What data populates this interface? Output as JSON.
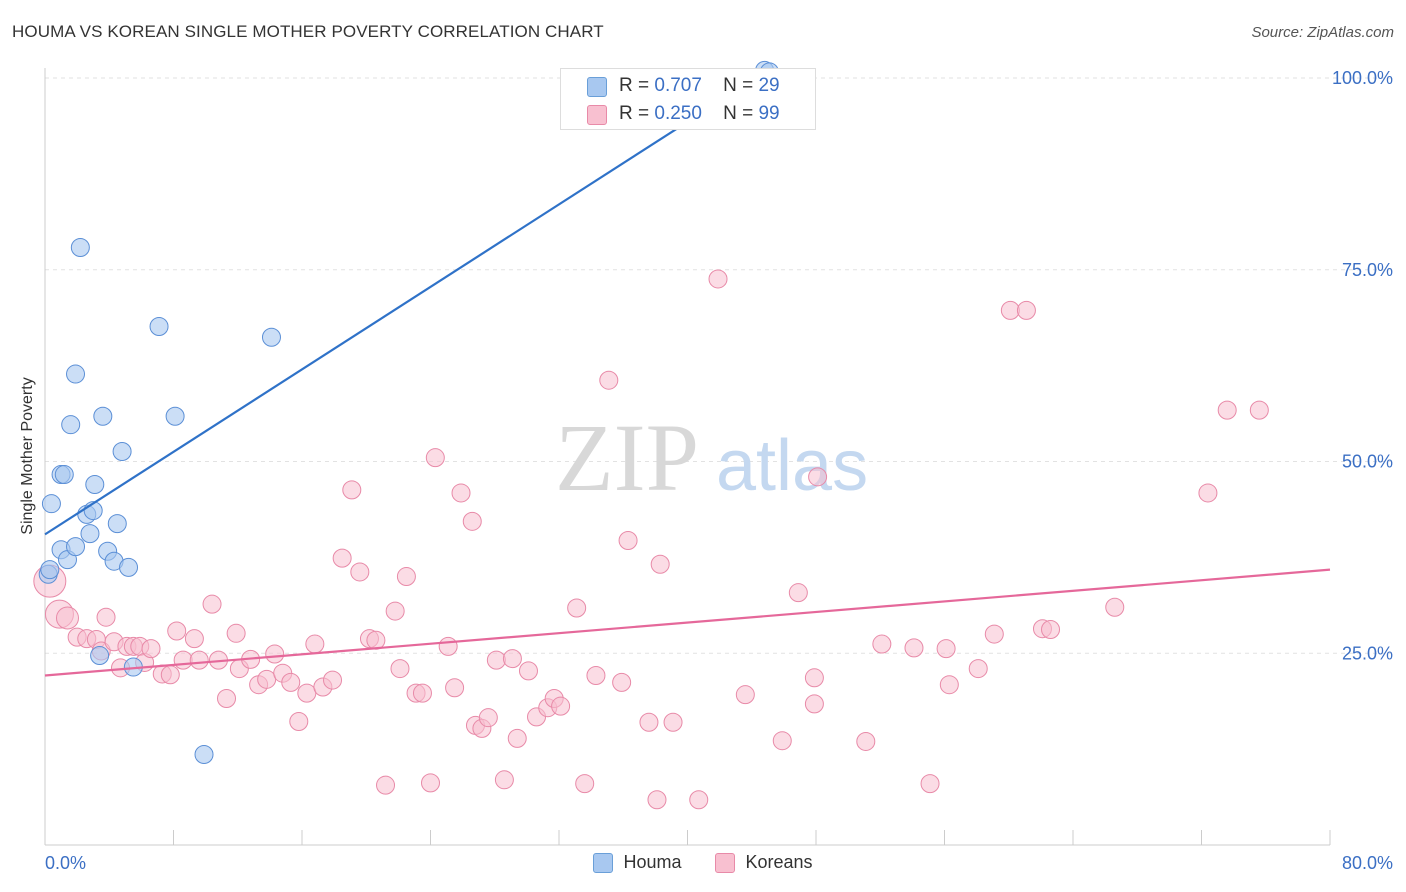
{
  "title": "HOUMA VS KOREAN SINGLE MOTHER POVERTY CORRELATION CHART",
  "source": "Source: ZipAtlas.com",
  "watermark": {
    "zip": "ZIP",
    "atlas": "atlas"
  },
  "stats": [
    {
      "r_label": "R =",
      "r_value": "0.707",
      "n_label": "N =",
      "n_value": "29",
      "color": "#a8c8f0",
      "border": "#6a9fd8"
    },
    {
      "r_label": "R =",
      "r_value": "0.250",
      "n_label": "N =",
      "n_value": "99",
      "color": "#f8c0d0",
      "border": "#e88aa8"
    }
  ],
  "legend": [
    {
      "label": "Houma",
      "color": "#a8c8f0",
      "border": "#6a9fd8"
    },
    {
      "label": "Koreans",
      "color": "#f8c0d0",
      "border": "#e88aa8"
    }
  ],
  "chart_data": {
    "type": "scatter",
    "title": "HOUMA VS KOREAN SINGLE MOTHER POVERTY CORRELATION CHART",
    "xlabel": "",
    "ylabel": "Single Mother Poverty",
    "xlim": [
      0,
      80
    ],
    "ylim": [
      0,
      100
    ],
    "x_tick_labels": [
      "0.0%",
      "80.0%"
    ],
    "y_tick_labels": [
      "100.0%",
      "75.0%",
      "50.0%",
      "25.0%"
    ],
    "y_ticks": [
      100,
      75,
      50,
      25
    ],
    "grid": true,
    "colors": {
      "houma": "#5b8fd6",
      "houma_fill": "#a8c8f0",
      "houma_line": "#2f72c8",
      "koreans": "#e88aa8",
      "koreans_fill": "#f8c0d0",
      "koreans_line": "#e5689a",
      "axis_text": "#3b6fc4"
    },
    "series": [
      {
        "name": "Houma",
        "trend": {
          "x": [
            0,
            45
          ],
          "y": [
            40.5,
            101
          ]
        },
        "points": [
          [
            0.2,
            35.3
          ],
          [
            0.3,
            35.9
          ],
          [
            0.4,
            44.5
          ],
          [
            1.0,
            48.3
          ],
          [
            1.0,
            38.5
          ],
          [
            1.2,
            48.3
          ],
          [
            1.4,
            37.2
          ],
          [
            1.6,
            54.8
          ],
          [
            1.9,
            61.4
          ],
          [
            1.9,
            38.9
          ],
          [
            2.2,
            77.9
          ],
          [
            2.6,
            43.1
          ],
          [
            2.8,
            40.6
          ],
          [
            3.0,
            43.6
          ],
          [
            3.1,
            47.0
          ],
          [
            3.4,
            24.7
          ],
          [
            3.6,
            55.9
          ],
          [
            3.9,
            38.3
          ],
          [
            4.3,
            37.0
          ],
          [
            4.5,
            41.9
          ],
          [
            4.8,
            51.3
          ],
          [
            5.2,
            36.2
          ],
          [
            5.5,
            23.2
          ],
          [
            7.1,
            67.6
          ],
          [
            8.1,
            55.9
          ],
          [
            9.9,
            11.8
          ],
          [
            14.1,
            66.2
          ],
          [
            44.8,
            101.0
          ],
          [
            45.1,
            100.8
          ]
        ]
      },
      {
        "name": "Koreans",
        "trend": {
          "x": [
            0,
            80
          ],
          "y": [
            22.1,
            35.9
          ]
        },
        "points": [
          [
            0.3,
            34.4
          ],
          [
            0.9,
            30.1
          ],
          [
            1.4,
            29.6
          ],
          [
            2.0,
            27.1
          ],
          [
            2.6,
            26.9
          ],
          [
            3.2,
            26.8
          ],
          [
            3.5,
            25.3
          ],
          [
            3.8,
            29.7
          ],
          [
            4.3,
            26.5
          ],
          [
            4.7,
            23.1
          ],
          [
            5.1,
            25.9
          ],
          [
            5.5,
            25.9
          ],
          [
            5.9,
            25.9
          ],
          [
            6.2,
            23.8
          ],
          [
            6.6,
            25.6
          ],
          [
            7.3,
            22.3
          ],
          [
            7.8,
            22.2
          ],
          [
            8.2,
            27.9
          ],
          [
            8.6,
            24.1
          ],
          [
            9.3,
            26.9
          ],
          [
            9.6,
            24.1
          ],
          [
            10.4,
            31.4
          ],
          [
            10.8,
            24.1
          ],
          [
            11.3,
            19.1
          ],
          [
            11.9,
            27.6
          ],
          [
            12.1,
            23.0
          ],
          [
            12.8,
            24.2
          ],
          [
            13.3,
            20.9
          ],
          [
            13.8,
            21.6
          ],
          [
            14.3,
            24.9
          ],
          [
            14.8,
            22.4
          ],
          [
            15.3,
            21.2
          ],
          [
            15.8,
            16.1
          ],
          [
            16.3,
            19.8
          ],
          [
            16.8,
            26.2
          ],
          [
            17.3,
            20.6
          ],
          [
            17.9,
            21.5
          ],
          [
            18.5,
            37.4
          ],
          [
            19.1,
            46.3
          ],
          [
            19.6,
            35.6
          ],
          [
            20.2,
            26.9
          ],
          [
            20.6,
            26.7
          ],
          [
            21.2,
            7.8
          ],
          [
            21.8,
            30.5
          ],
          [
            22.1,
            23.0
          ],
          [
            22.5,
            35.0
          ],
          [
            23.1,
            19.8
          ],
          [
            23.5,
            19.8
          ],
          [
            24.0,
            8.1
          ],
          [
            24.3,
            50.5
          ],
          [
            25.1,
            25.9
          ],
          [
            25.5,
            20.5
          ],
          [
            25.9,
            45.9
          ],
          [
            26.6,
            42.2
          ],
          [
            26.8,
            15.6
          ],
          [
            27.2,
            15.2
          ],
          [
            27.6,
            16.6
          ],
          [
            28.1,
            24.1
          ],
          [
            28.6,
            8.5
          ],
          [
            29.1,
            24.3
          ],
          [
            29.4,
            13.9
          ],
          [
            30.1,
            22.7
          ],
          [
            30.6,
            16.7
          ],
          [
            31.3,
            17.9
          ],
          [
            31.7,
            19.1
          ],
          [
            32.1,
            18.1
          ],
          [
            33.1,
            30.9
          ],
          [
            33.6,
            8.0
          ],
          [
            34.3,
            22.1
          ],
          [
            35.1,
            60.6
          ],
          [
            35.9,
            21.2
          ],
          [
            36.3,
            39.7
          ],
          [
            37.6,
            16.0
          ],
          [
            38.1,
            5.9
          ],
          [
            38.3,
            36.6
          ],
          [
            39.1,
            16.0
          ],
          [
            40.7,
            5.9
          ],
          [
            41.9,
            73.8
          ],
          [
            43.6,
            19.6
          ],
          [
            45.9,
            13.6
          ],
          [
            46.9,
            32.9
          ],
          [
            47.9,
            18.4
          ],
          [
            47.9,
            21.8
          ],
          [
            48.1,
            48.0
          ],
          [
            51.1,
            13.5
          ],
          [
            52.1,
            26.2
          ],
          [
            54.1,
            25.7
          ],
          [
            55.1,
            8.0
          ],
          [
            56.1,
            25.6
          ],
          [
            56.3,
            20.9
          ],
          [
            58.1,
            23.0
          ],
          [
            59.1,
            27.5
          ],
          [
            60.1,
            69.7
          ],
          [
            61.1,
            69.7
          ],
          [
            62.1,
            28.2
          ],
          [
            62.6,
            28.1
          ],
          [
            66.6,
            31.0
          ],
          [
            72.4,
            45.9
          ],
          [
            73.6,
            56.7
          ],
          [
            75.6,
            56.7
          ]
        ]
      }
    ]
  }
}
